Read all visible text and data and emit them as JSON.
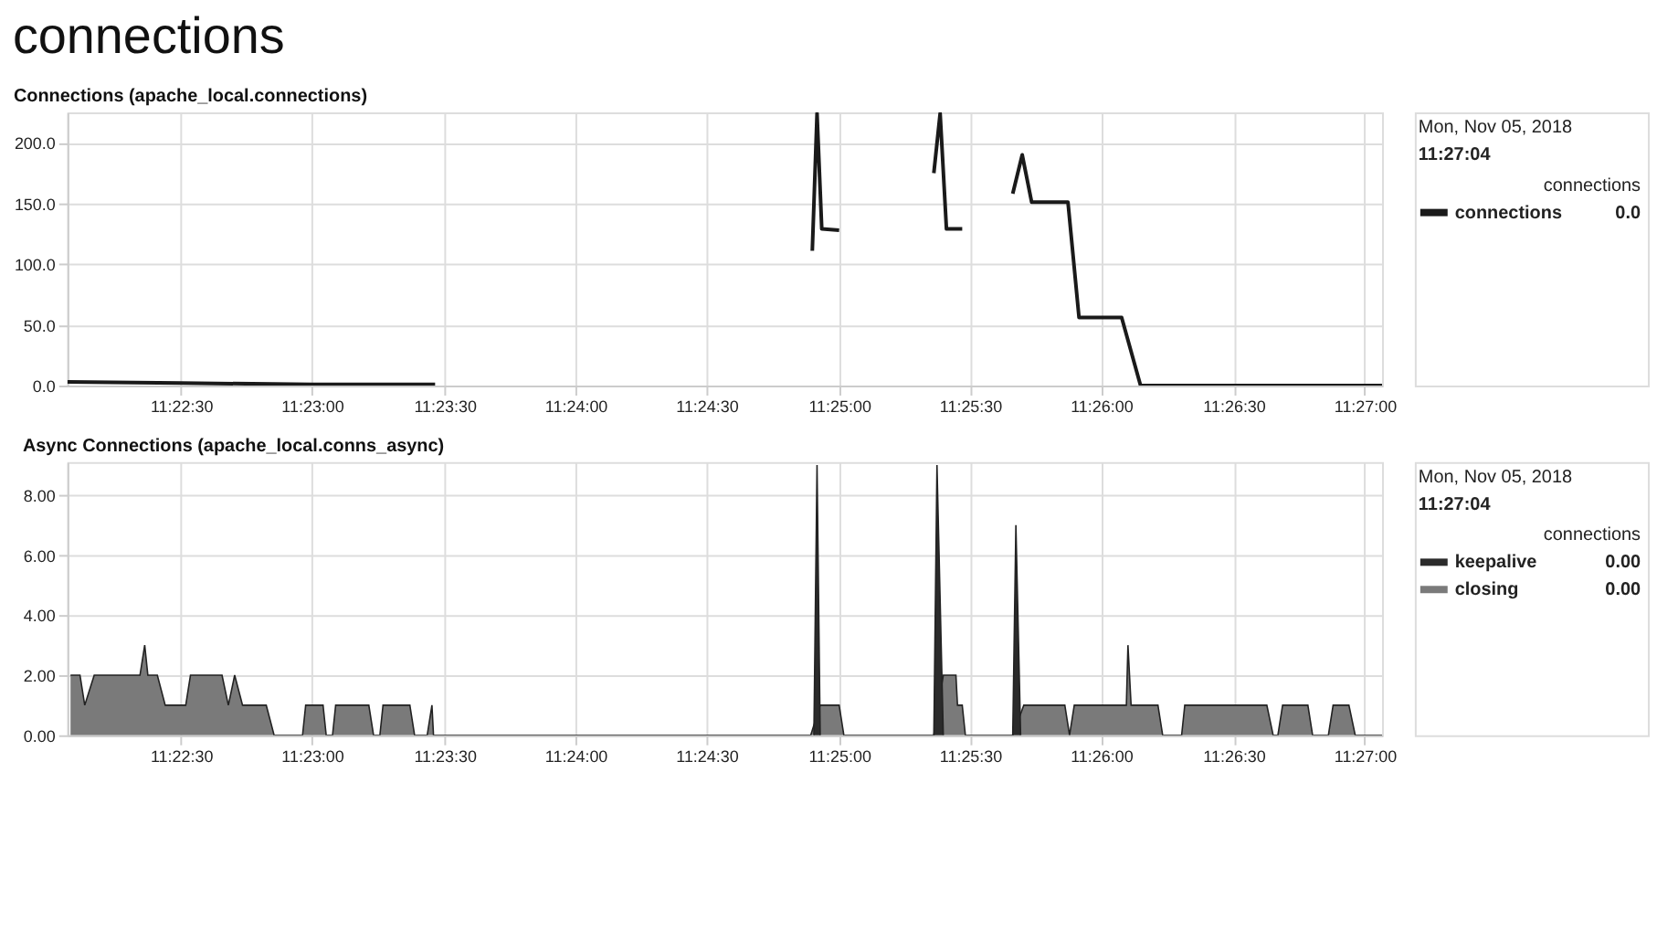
{
  "chart_data": [
    {
      "type": "line",
      "title": "connections",
      "subtitle": "Connections (apache_local.connections)",
      "xlim": [
        11.3678,
        11.4511
      ],
      "xticks": [
        {
          "value": 11.375,
          "label": "11:22:30"
        },
        {
          "value": 11.3833,
          "label": "11:23:00"
        },
        {
          "value": 11.3917,
          "label": "11:23:30"
        },
        {
          "value": 11.4,
          "label": "11:24:00"
        },
        {
          "value": 11.4083,
          "label": "11:24:30"
        },
        {
          "value": 11.4167,
          "label": "11:25:00"
        },
        {
          "value": 11.425,
          "label": "11:25:30"
        },
        {
          "value": 11.4333,
          "label": "11:26:00"
        },
        {
          "value": 11.4417,
          "label": "11:26:30"
        },
        {
          "value": 11.45,
          "label": "11:27:00"
        }
      ],
      "ylim": [
        0,
        225
      ],
      "yticks": [
        {
          "value": 0,
          "label": "0.0"
        },
        {
          "value": 50,
          "label": "50.0"
        },
        {
          "value": 100,
          "label": "100.0"
        },
        {
          "value": 150,
          "label": "150.0"
        },
        {
          "value": 200,
          "label": "200.0"
        }
      ],
      "grid": true,
      "legend": "right",
      "legend_title": "connections",
      "annotations": [
        "Mon, Nov 05, 2018",
        "11:27:04",
        "0.0"
      ],
      "series": [
        {
          "name": "connections",
          "color": "#1a1a1a",
          "x": [
            11.3678,
            11.375,
            11.3833,
            11.3911,
            11.4,
            11.415,
            11.4153,
            11.4156,
            11.4167,
            11.42,
            11.4227,
            11.4231,
            11.4235,
            11.4245,
            11.426,
            11.4277,
            11.4283,
            11.4289,
            11.4312,
            11.4319,
            11.4346,
            11.4358,
            11.4431,
            11.4511
          ],
          "values": [
            3,
            2,
            1,
            1,
            null,
            111,
            224,
            129,
            128,
            null,
            175,
            224,
            129,
            129,
            null,
            158,
            190,
            151,
            151,
            56,
            56,
            0,
            0,
            0
          ]
        }
      ]
    },
    {
      "type": "area",
      "title": "Async Connections (apache_local.conns_async)",
      "xlim": [
        11.3678,
        11.4511
      ],
      "xticks": [
        {
          "value": 11.375,
          "label": "11:22:30"
        },
        {
          "value": 11.3833,
          "label": "11:23:00"
        },
        {
          "value": 11.3917,
          "label": "11:23:30"
        },
        {
          "value": 11.4,
          "label": "11:24:00"
        },
        {
          "value": 11.4083,
          "label": "11:24:30"
        },
        {
          "value": 11.4167,
          "label": "11:25:00"
        },
        {
          "value": 11.425,
          "label": "11:25:30"
        },
        {
          "value": 11.4333,
          "label": "11:26:00"
        },
        {
          "value": 11.4417,
          "label": "11:26:30"
        },
        {
          "value": 11.45,
          "label": "11:27:00"
        }
      ],
      "ylim": [
        0,
        9.1
      ],
      "yticks": [
        {
          "value": 0,
          "label": "0.00"
        },
        {
          "value": 2,
          "label": "2.00"
        },
        {
          "value": 4,
          "label": "4.00"
        },
        {
          "value": 6,
          "label": "6.00"
        },
        {
          "value": 8,
          "label": "8.00"
        }
      ],
      "grid": true,
      "legend": "right",
      "legend_title": "connections",
      "annotations": [
        "Mon, Nov 05, 2018",
        "11:27:04",
        "0.00",
        "0.00"
      ],
      "series": [
        {
          "name": "closing",
          "color": "#7a7a7a",
          "x": [
            11.368,
            11.3686,
            11.3689,
            11.3695,
            11.3724,
            11.3727,
            11.3729,
            11.3735,
            11.374,
            11.3753,
            11.3756,
            11.3776,
            11.378,
            11.3784,
            11.3789,
            11.3804,
            11.3809,
            11.3827,
            11.3829,
            11.384,
            11.3842,
            11.3846,
            11.3848,
            11.3869,
            11.3872,
            11.3876,
            11.3878,
            11.3895,
            11.3898,
            11.3906,
            11.3909,
            11.391,
            11.4149,
            11.4155,
            11.4167,
            11.417,
            11.4227,
            11.4233,
            11.4241,
            11.4242,
            11.4245,
            11.4247,
            11.4277,
            11.4284,
            11.431,
            11.4313,
            11.4316,
            11.4349,
            11.435,
            11.4352,
            11.4369,
            11.4372,
            11.4384,
            11.4386,
            11.4438,
            11.4442,
            11.4445,
            11.4448,
            11.4464,
            11.4467,
            11.4477,
            11.448,
            11.449,
            11.4494,
            11.4511
          ],
          "values": [
            2,
            2,
            1,
            2,
            2,
            3,
            2,
            2,
            1,
            1,
            2,
            2,
            1,
            2,
            1,
            1,
            0,
            0,
            1,
            1,
            0,
            0,
            1,
            1,
            0,
            0,
            1,
            1,
            0,
            0,
            1,
            0,
            0,
            1,
            1,
            0,
            0,
            2,
            2,
            1,
            1,
            0,
            0,
            1,
            1,
            0,
            1,
            1,
            3,
            1,
            1,
            0,
            0,
            1,
            1,
            0,
            0,
            1,
            1,
            0,
            0,
            1,
            1,
            0,
            0
          ]
        },
        {
          "name": "keepalive",
          "color": "#2b2b2b",
          "x": [
            11.4151,
            11.4153,
            11.4155,
            11.42,
            11.4227,
            11.4229,
            11.4233,
            11.426,
            11.4277,
            11.4279,
            11.4282
          ],
          "values": [
            0,
            9,
            0,
            null,
            0,
            9,
            0,
            null,
            0,
            7,
            0
          ]
        }
      ]
    }
  ]
}
